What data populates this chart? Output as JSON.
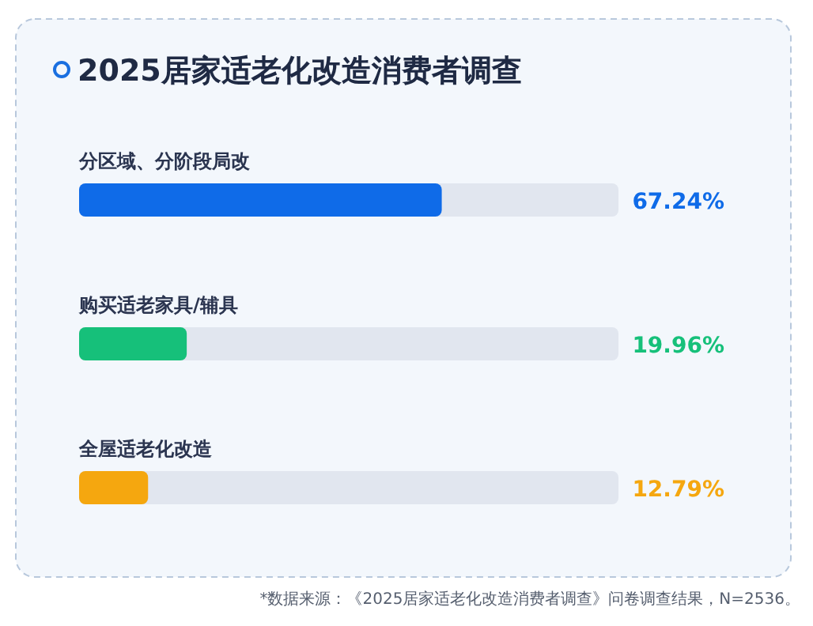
{
  "chart_data": {
    "type": "bar",
    "orientation": "horizontal",
    "title": "2025居家适老化改造消费者调查",
    "categories": [
      "分区域、分阶段局改",
      "购买适老家具/辅具",
      "全屋适老化改造"
    ],
    "values": [
      67.24,
      19.96,
      12.79
    ],
    "colors": [
      "#0f6be8",
      "#16c07a",
      "#f5a70f"
    ],
    "value_labels": [
      "67.24%",
      "19.96%",
      "12.79%"
    ],
    "xlim": [
      0,
      100
    ],
    "annotations": [
      "*数据来源：《2025居家适老化改造消费者调查》问卷调查结果，N=2536。"
    ]
  }
}
